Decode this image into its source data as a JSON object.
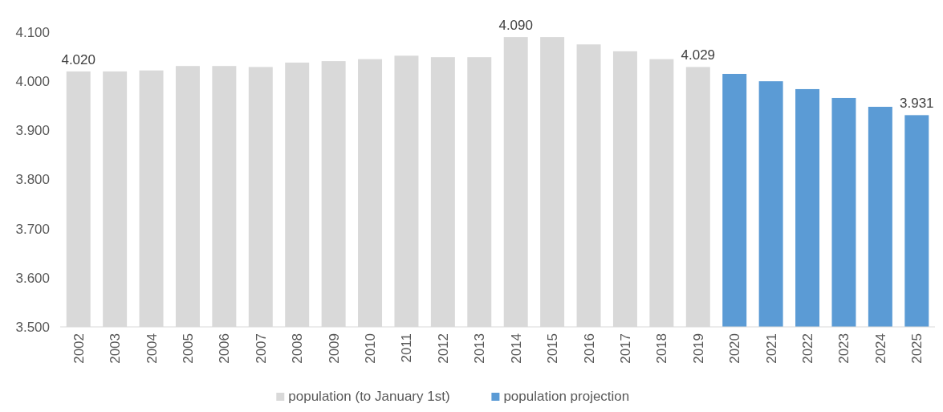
{
  "chart_data": {
    "type": "bar",
    "categories": [
      "2002",
      "2003",
      "2004",
      "2005",
      "2006",
      "2007",
      "2008",
      "2009",
      "2010",
      "2011",
      "2012",
      "2013",
      "2014",
      "2015",
      "2016",
      "2017",
      "2018",
      "2019",
      "2020",
      "2021",
      "2022",
      "2023",
      "2024",
      "2025"
    ],
    "series": [
      {
        "name": "population (to January 1st)",
        "color": "#d9d9d9",
        "values": [
          4.02,
          4.02,
          4.022,
          4.031,
          4.031,
          4.029,
          4.038,
          4.041,
          4.045,
          4.052,
          4.049,
          4.049,
          4.09,
          4.09,
          4.075,
          4.061,
          4.045,
          4.029,
          null,
          null,
          null,
          null,
          null,
          null
        ],
        "value_labels": [
          "4.020",
          null,
          null,
          null,
          null,
          null,
          null,
          null,
          null,
          null,
          null,
          null,
          "4.090",
          null,
          null,
          null,
          null,
          "4.029",
          null,
          null,
          null,
          null,
          null,
          null
        ]
      },
      {
        "name": "population projection",
        "color": "#5b9bd5",
        "values": [
          null,
          null,
          null,
          null,
          null,
          null,
          null,
          null,
          null,
          null,
          null,
          null,
          null,
          null,
          null,
          null,
          null,
          null,
          4.015,
          4.0,
          3.984,
          3.966,
          3.948,
          3.931
        ],
        "value_labels": [
          null,
          null,
          null,
          null,
          null,
          null,
          null,
          null,
          null,
          null,
          null,
          null,
          null,
          null,
          null,
          null,
          null,
          null,
          null,
          null,
          null,
          null,
          null,
          "3.931"
        ]
      }
    ],
    "ylim": [
      3.5,
      4.1
    ],
    "yticks": [
      {
        "value": 3.5,
        "label": "3.500"
      },
      {
        "value": 3.6,
        "label": "3.600"
      },
      {
        "value": 3.7,
        "label": "3.700"
      },
      {
        "value": 3.8,
        "label": "3.800"
      },
      {
        "value": 3.9,
        "label": "3.900"
      },
      {
        "value": 4.0,
        "label": "4.000"
      },
      {
        "value": 4.1,
        "label": "4.100"
      }
    ],
    "legend": "bottom"
  }
}
